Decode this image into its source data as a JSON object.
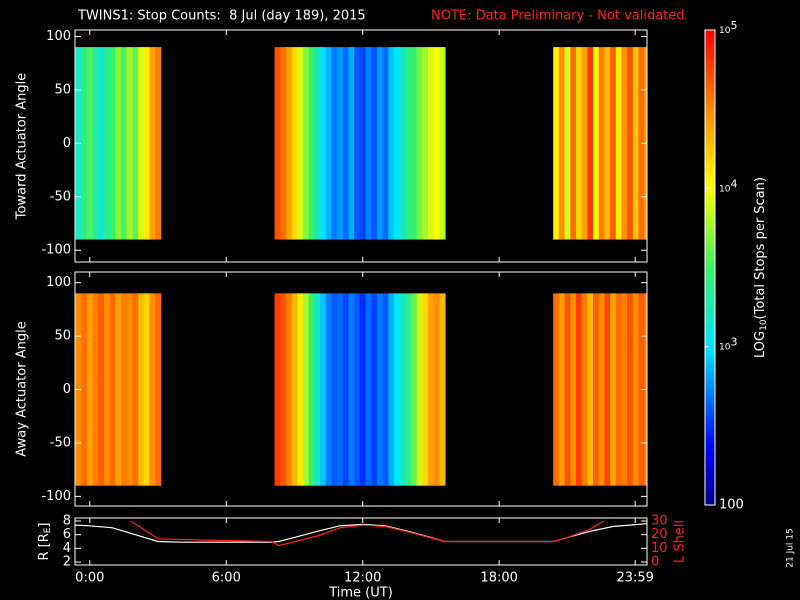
{
  "chart_data": [
    {
      "type": "heatmap",
      "title": "TWINS1: Stop Counts:  8 Jul (day 189), 2015",
      "note": "NOTE: Data Preliminary - Not validated",
      "ylabel": "Toward Actuator Angle",
      "x": [
        -0.5,
        -0.25,
        0,
        0.25,
        0.5,
        0.75,
        1,
        1.25,
        1.5,
        1.75,
        2,
        2.25,
        2.5,
        2.75,
        3,
        8.25,
        8.5,
        8.75,
        9,
        9.25,
        9.5,
        9.75,
        10,
        10.25,
        10.5,
        10.75,
        11,
        11.25,
        11.5,
        11.75,
        12,
        12.25,
        12.5,
        12.75,
        13,
        13.25,
        13.5,
        13.75,
        14,
        14.25,
        14.5,
        14.75,
        15,
        15.25,
        15.5,
        20.5,
        20.75,
        21,
        21.25,
        21.5,
        21.75,
        22,
        22.25,
        22.5,
        22.75,
        23,
        23.25,
        23.5,
        23.75,
        24,
        24.25,
        24.5
      ],
      "values": [
        1500,
        2500,
        3500,
        2000,
        1400,
        2000,
        3000,
        5000,
        3500,
        6000,
        4000,
        8000,
        12000,
        25000,
        35000,
        50000,
        40000,
        25000,
        15000,
        8000,
        5000,
        3000,
        1800,
        1000,
        700,
        500,
        600,
        450,
        700,
        400,
        350,
        500,
        400,
        600,
        450,
        800,
        1000,
        1500,
        2500,
        3000,
        4500,
        6000,
        8000,
        10000,
        7000,
        12000,
        30000,
        8000,
        40000,
        15000,
        25000,
        60000,
        10000,
        35000,
        20000,
        45000,
        12000,
        30000,
        50000,
        18000,
        40000,
        25000
      ],
      "angle_extent": [
        -90,
        90
      ],
      "xlim": [
        -0.65,
        24.5
      ],
      "ylim": [
        -111,
        106
      ],
      "yticks": [
        -100,
        -50,
        0,
        50,
        100
      ],
      "colorbar": {
        "zlim": [
          100,
          100000
        ],
        "log": true,
        "ticks": [
          100,
          {
            "value": 1000,
            "label": "10",
            "exponent": "3"
          },
          {
            "value": 10000,
            "label": "10",
            "exponent": "4"
          },
          {
            "value": 100000,
            "label": "10",
            "exponent": "5"
          }
        ],
        "label": [
          "LOG",
          "10",
          "(Total Stops per Scan)"
        ]
      }
    },
    {
      "type": "heatmap",
      "ylabel": "Away Actuator Angle",
      "x": [
        -0.5,
        -0.25,
        0,
        0.25,
        0.5,
        0.75,
        1,
        1.25,
        1.5,
        1.75,
        2,
        2.25,
        2.5,
        2.75,
        3,
        8.25,
        8.5,
        8.75,
        9,
        9.25,
        9.5,
        9.75,
        10,
        10.25,
        10.5,
        10.75,
        11,
        11.25,
        11.5,
        11.75,
        12,
        12.25,
        12.5,
        12.75,
        13,
        13.25,
        13.5,
        13.75,
        14,
        14.25,
        14.5,
        14.75,
        15,
        15.25,
        15.5,
        20.5,
        20.75,
        21,
        21.25,
        21.5,
        21.75,
        22,
        22.25,
        22.5,
        22.75,
        23,
        23.25,
        23.5,
        23.75,
        24,
        24.25,
        24.5
      ],
      "values": [
        30000,
        40000,
        25000,
        35000,
        45000,
        30000,
        40000,
        25000,
        35000,
        30000,
        40000,
        20000,
        15000,
        30000,
        40000,
        60000,
        50000,
        35000,
        20000,
        12000,
        6000,
        3000,
        1500,
        800,
        500,
        400,
        450,
        350,
        500,
        400,
        300,
        450,
        350,
        500,
        400,
        700,
        1000,
        1500,
        2500,
        4000,
        8000,
        15000,
        25000,
        30000,
        20000,
        40000,
        25000,
        50000,
        30000,
        60000,
        35000,
        20000,
        45000,
        30000,
        55000,
        25000,
        40000,
        35000,
        50000,
        30000,
        45000,
        35000
      ],
      "angle_extent": [
        -90,
        90
      ],
      "xlim": [
        -0.65,
        24.5
      ],
      "ylim": [
        -109,
        110
      ],
      "yticks": [
        -100,
        -50,
        0,
        50,
        100
      ]
    },
    {
      "type": "line",
      "ylabel": [
        "R [R",
        "E",
        "]"
      ],
      "y2label": "L Shell",
      "xlabel": "Time (UT)",
      "date_stamp": "21 Jul 15",
      "xlim": [
        -0.65,
        24.5
      ],
      "xticks": [
        {
          "value": 0,
          "label": "0:00"
        },
        {
          "value": 6,
          "label": "6:00"
        },
        {
          "value": 12,
          "label": "12:00"
        },
        {
          "value": 18,
          "label": "18:00"
        },
        {
          "value": 23.98,
          "label": "23:59"
        }
      ],
      "ylim": [
        1.56,
        8.44
      ],
      "yticks": [
        2,
        4,
        6,
        8
      ],
      "y2lim": [
        -2.2,
        32.2
      ],
      "y2ticks": [
        0,
        10,
        20,
        30
      ],
      "series": [
        {
          "color": "#ffffff",
          "x": [
            -0.65,
            0,
            1,
            2,
            3,
            4,
            6,
            8,
            8.3,
            9,
            10,
            11,
            12,
            13,
            14,
            15,
            15.6,
            18,
            20.4,
            21,
            22,
            23,
            24.5
          ],
          "values": [
            7.4,
            7.3,
            7.0,
            6.0,
            5.0,
            4.9,
            4.9,
            4.9,
            5.0,
            5.6,
            6.5,
            7.3,
            7.5,
            7.3,
            6.5,
            5.6,
            5.0,
            5.0,
            5.0,
            5.6,
            6.5,
            7.2,
            7.6
          ]
        },
        {
          "color": "#ff2020",
          "axis": "y2",
          "x": [
            1.8,
            3,
            5,
            8,
            8.3,
            10,
            11,
            12,
            13,
            14,
            15.6,
            18,
            20.4,
            21,
            22,
            22.6
          ],
          "values": [
            30,
            17,
            16,
            15,
            12,
            19,
            25,
            27,
            26,
            22,
            15,
            15,
            15,
            18,
            24,
            30
          ]
        }
      ]
    }
  ]
}
